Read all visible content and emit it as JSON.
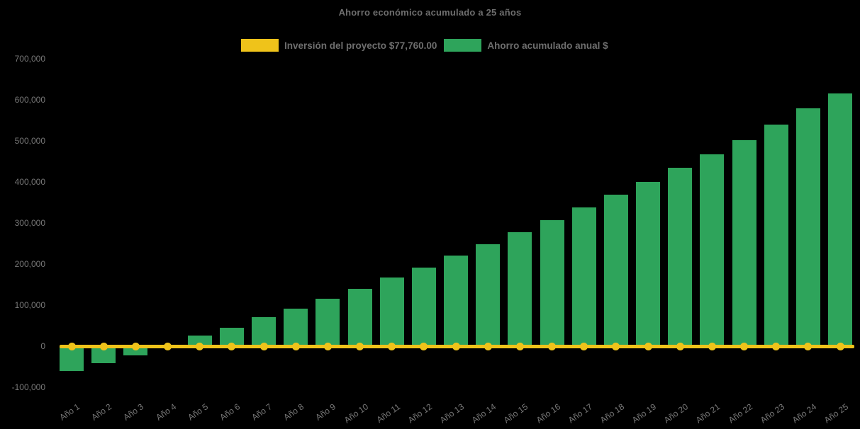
{
  "title": "Ahorro económico acumulado a 25 años",
  "legend": [
    {
      "label": "Inversión del proyecto $77,760.00",
      "color": "#efc31a",
      "series_type": "line"
    },
    {
      "label": "Ahorro acumulado anual $",
      "color": "#2ea45b",
      "series_type": "bar"
    }
  ],
  "chart_data": {
    "type": "bar",
    "title": "Ahorro económico acumulado a 25 años",
    "xlabel": "",
    "ylabel": "",
    "categories": [
      "Año 1",
      "Año 2",
      "Año 3",
      "Año 4",
      "Año 5",
      "Año 6",
      "Año 7",
      "Año 8",
      "Año 9",
      "Año 10",
      "Año 11",
      "Año 12",
      "Año 13",
      "Año 14",
      "Año 15",
      "Año 16",
      "Año 17",
      "Año 18",
      "Año 19",
      "Año 20",
      "Año 21",
      "Año 22",
      "Año 23",
      "Año 24",
      "Año 25"
    ],
    "series": [
      {
        "name": "Ahorro acumulado anual $",
        "type": "bar",
        "color": "#2ea45b",
        "values": [
          -61000,
          -41000,
          -22000,
          0,
          26000,
          45000,
          71000,
          91000,
          115000,
          140000,
          167000,
          191000,
          221000,
          248000,
          278000,
          307000,
          338000,
          369000,
          400000,
          434000,
          467000,
          502000,
          540000,
          579000,
          615000
        ]
      },
      {
        "name": "Inversión del proyecto $77,760.00",
        "type": "line",
        "color": "#efc31a",
        "investment_amount": 77760,
        "values": [
          0,
          0,
          0,
          0,
          0,
          0,
          0,
          0,
          0,
          0,
          0,
          0,
          0,
          0,
          0,
          0,
          0,
          0,
          0,
          0,
          0,
          0,
          0,
          0,
          0
        ]
      }
    ],
    "y_ticks": [
      700000,
      600000,
      500000,
      400000,
      300000,
      200000,
      100000,
      0,
      -100000
    ],
    "ylim": [
      -100000,
      700000
    ],
    "grid": false,
    "legend_position": "top",
    "background": "#000000",
    "text_color": "#777777"
  }
}
